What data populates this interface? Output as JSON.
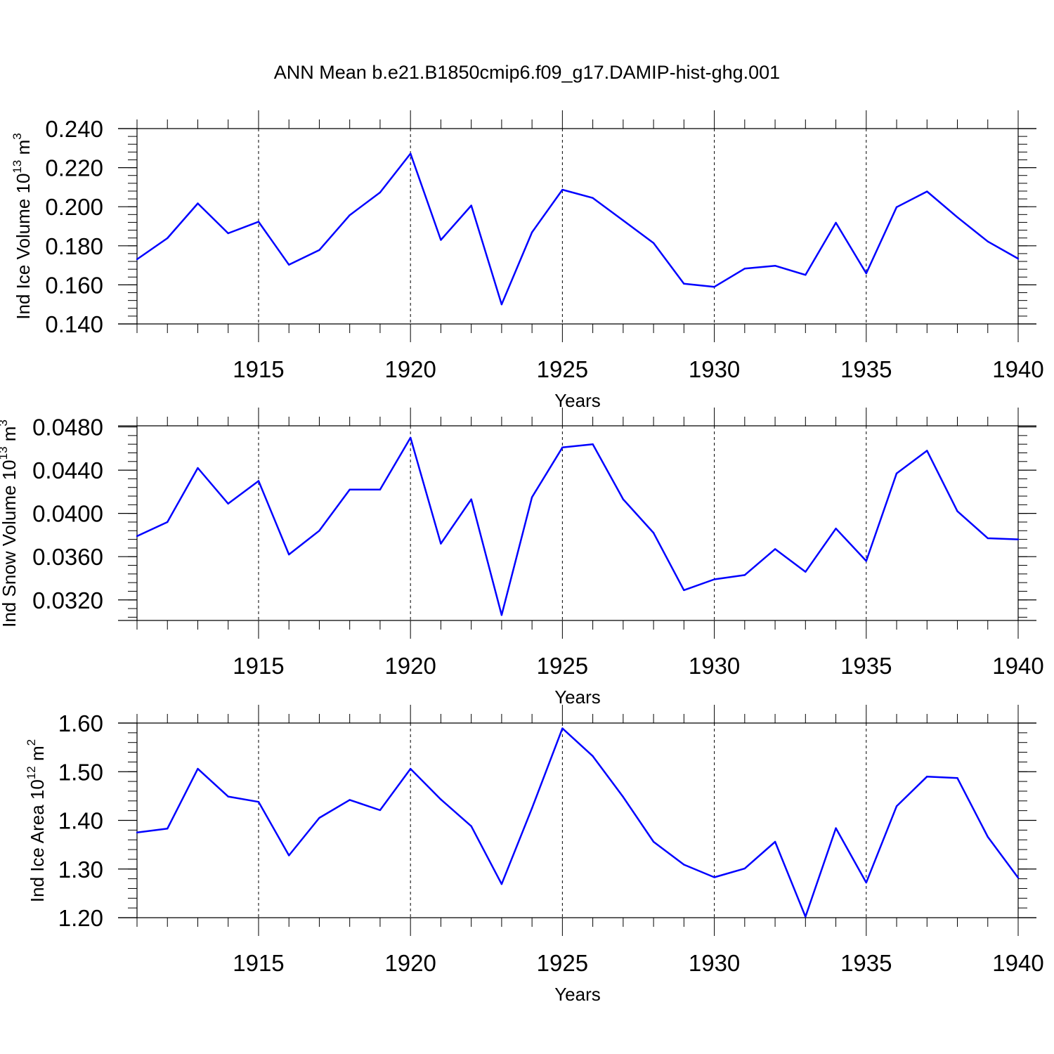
{
  "title": "ANN Mean b.e21.B1850cmip6.f09_g17.DAMIP-hist-ghg.001",
  "colors": {
    "line": "#0000ff",
    "axis": "#000000",
    "grid": "#000000"
  },
  "chart_data": [
    {
      "type": "line",
      "ylabel": {
        "main": "Ind Ice Volume 10",
        "exp": "13",
        "unit": " m",
        "unit_exp": "3"
      },
      "xlabel": "Years",
      "xlim": [
        1911,
        1940
      ],
      "ylim": [
        0.14,
        0.24
      ],
      "ytick_values": [
        0.14,
        0.16,
        0.18,
        0.2,
        0.22,
        0.24
      ],
      "ytick_labels": [
        "0.140",
        "0.160",
        "0.180",
        "0.200",
        "0.220",
        "0.240"
      ],
      "xtick_values": [
        1915,
        1920,
        1925,
        1930,
        1935,
        1940
      ],
      "xtick_labels": [
        "1915",
        "1920",
        "1925",
        "1930",
        "1935",
        "1940"
      ],
      "grid": "vertical dashed at major x ticks",
      "x": [
        1911,
        1912,
        1913,
        1914,
        1915,
        1916,
        1917,
        1918,
        1919,
        1920,
        1921,
        1922,
        1923,
        1924,
        1925,
        1926,
        1927,
        1928,
        1929,
        1930,
        1931,
        1932,
        1933,
        1934,
        1935,
        1936,
        1937,
        1938,
        1939,
        1940
      ],
      "y": [
        0.1731,
        0.1839,
        0.2017,
        0.1864,
        0.1923,
        0.1703,
        0.1778,
        0.1957,
        0.2073,
        0.2272,
        0.183,
        0.2006,
        0.15,
        0.1869,
        0.2087,
        0.2045,
        0.193,
        0.1814,
        0.1606,
        0.159,
        0.1683,
        0.1698,
        0.1651,
        0.1918,
        0.1659,
        0.1998,
        0.2078,
        0.1946,
        0.1822,
        0.1734
      ]
    },
    {
      "type": "line",
      "ylabel": {
        "main": "Ind Snow Volume 10",
        "exp": "13",
        "unit": " m",
        "unit_exp": "3"
      },
      "xlabel": "Years",
      "xlim": [
        1911,
        1940
      ],
      "ylim": [
        0.0301,
        0.0481
      ],
      "ytick_values": [
        0.032,
        0.036,
        0.04,
        0.044,
        0.048
      ],
      "ytick_labels": [
        "0.0320",
        "0.0360",
        "0.0400",
        "0.0440",
        "0.0480"
      ],
      "xtick_values": [
        1915,
        1920,
        1925,
        1930,
        1935,
        1940
      ],
      "xtick_labels": [
        "1915",
        "1920",
        "1925",
        "1930",
        "1935",
        "1940"
      ],
      "grid": "vertical dashed at major x ticks",
      "x": [
        1911,
        1912,
        1913,
        1914,
        1915,
        1916,
        1917,
        1918,
        1919,
        1920,
        1921,
        1922,
        1923,
        1924,
        1925,
        1926,
        1927,
        1928,
        1929,
        1930,
        1931,
        1932,
        1933,
        1934,
        1935,
        1936,
        1937,
        1938,
        1939,
        1940
      ],
      "y": [
        0.0379,
        0.0392,
        0.0442,
        0.0409,
        0.043,
        0.0362,
        0.0384,
        0.0422,
        0.0422,
        0.047,
        0.0372,
        0.0413,
        0.0306,
        0.0415,
        0.0461,
        0.0464,
        0.0413,
        0.0382,
        0.0329,
        0.0339,
        0.0343,
        0.0367,
        0.0346,
        0.0386,
        0.0356,
        0.0437,
        0.0458,
        0.0402,
        0.0377,
        0.0376
      ]
    },
    {
      "type": "line",
      "ylabel": {
        "main": "Ind Ice Area 10",
        "exp": "12",
        "unit": " m",
        "unit_exp": "2"
      },
      "xlabel": "Years",
      "xlim": [
        1911,
        1940
      ],
      "ylim": [
        1.2,
        1.6
      ],
      "ytick_values": [
        1.2,
        1.3,
        1.4,
        1.5,
        1.6
      ],
      "ytick_labels": [
        "1.20",
        "1.30",
        "1.40",
        "1.50",
        "1.60"
      ],
      "xtick_values": [
        1915,
        1920,
        1925,
        1930,
        1935,
        1940
      ],
      "xtick_labels": [
        "1915",
        "1920",
        "1925",
        "1930",
        "1935",
        "1940"
      ],
      "grid": "vertical dashed at major x ticks",
      "x": [
        1911,
        1912,
        1913,
        1914,
        1915,
        1916,
        1917,
        1918,
        1919,
        1920,
        1921,
        1922,
        1923,
        1924,
        1925,
        1926,
        1927,
        1928,
        1929,
        1930,
        1931,
        1932,
        1933,
        1934,
        1935,
        1936,
        1937,
        1938,
        1939,
        1940
      ],
      "y": [
        1.375,
        1.383,
        1.506,
        1.449,
        1.438,
        1.328,
        1.405,
        1.442,
        1.421,
        1.506,
        1.443,
        1.388,
        1.269,
        1.425,
        1.589,
        1.532,
        1.448,
        1.356,
        1.309,
        1.283,
        1.301,
        1.356,
        1.202,
        1.384,
        1.272,
        1.429,
        1.49,
        1.487,
        1.366,
        1.282
      ]
    }
  ]
}
